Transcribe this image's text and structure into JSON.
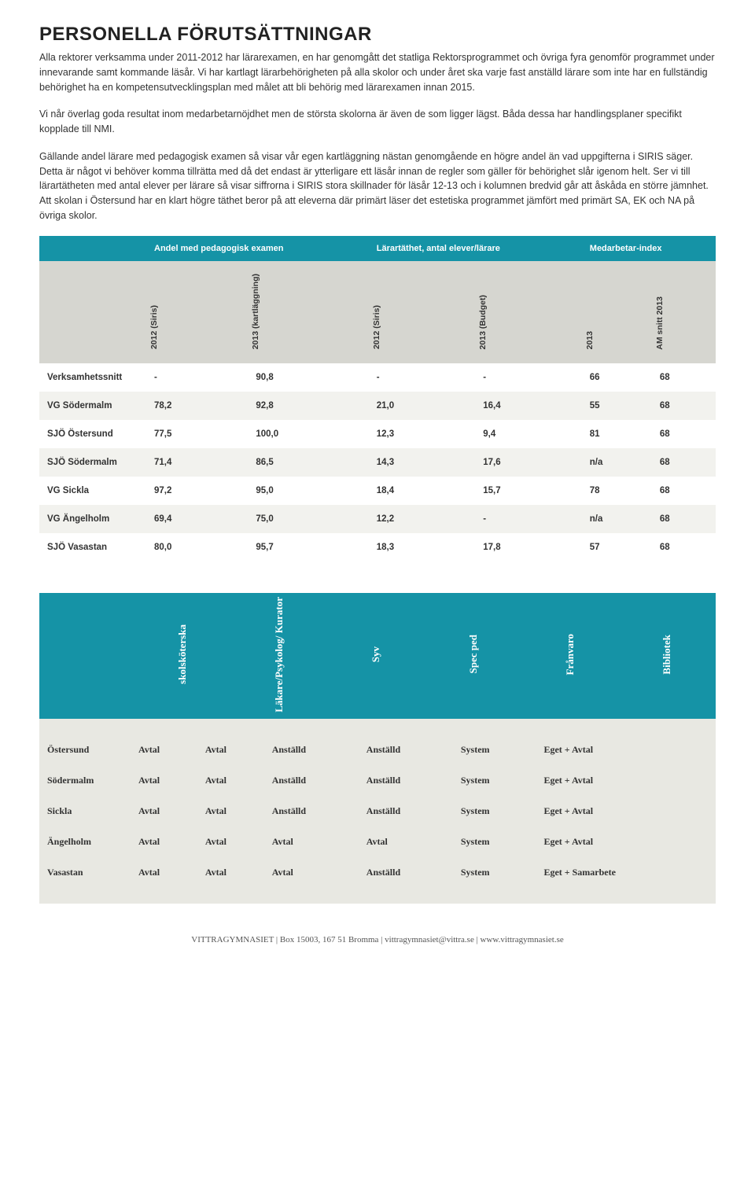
{
  "heading": "PERSONELLA FÖRUTSÄTTNINGAR",
  "paragraphs": [
    "Alla rektorer verksamma under 2011-2012 har lärarexamen, en har genomgått det statliga Rektorsprogrammet och övriga fyra genomför programmet under innevarande samt kommande läsår. Vi har kartlagt lärarbehörigheten på alla skolor och under året ska varje fast anställd lärare som inte har en fullständig behörighet ha en kompetensutvecklingsplan med målet att bli behörig med lärarexamen innan 2015.",
    "Vi når överlag goda resultat inom medarbetarnöjdhet men de största skolorna är även de som ligger lägst. Båda dessa har handlingsplaner specifikt kopplade till NMI.",
    "Gällande andel lärare med pedagogisk examen så visar vår egen kartläggning nästan genomgående en högre andel än vad uppgifterna i SIRIS säger. Detta är något vi behöver komma tillrätta med då det endast är ytterligare ett läsår innan de regler som gäller för behörighet slår igenom helt. Ser vi till lärartätheten med antal elever per lärare så visar siffrorna i SIRIS stora skillnader för läsår 12-13 och i kolumnen bredvid går att åskåda en större jämnhet. Att skolan i Östersund har en klart högre täthet beror på att eleverna där primärt läser det estetiska programmet jämfört med primärt SA, EK och NA på övriga skolor."
  ],
  "table1": {
    "group_headers": [
      "",
      "Andel med pedagogisk examen",
      "Lärartäthet, antal elever/lärare",
      "Medarbetar-index"
    ],
    "col_headers": [
      "",
      "2012 (Siris)",
      "2013 (kartläggning)",
      "2012 (Siris)",
      "2013 (Budget)",
      "2013",
      "AM snitt 2013"
    ],
    "rows": [
      {
        "label": "Verksamhetssnitt",
        "cells": [
          "-",
          "90,8",
          "-",
          "-",
          "66",
          "68"
        ]
      },
      {
        "label": "VG Södermalm",
        "cells": [
          "78,2",
          "92,8",
          "21,0",
          "16,4",
          "55",
          "68"
        ]
      },
      {
        "label": "SJÖ Östersund",
        "cells": [
          "77,5",
          "100,0",
          "12,3",
          "9,4",
          "81",
          "68"
        ]
      },
      {
        "label": "SJÖ Södermalm",
        "cells": [
          "71,4",
          "86,5",
          "14,3",
          "17,6",
          "n/a",
          "68"
        ]
      },
      {
        "label": "VG Sickla",
        "cells": [
          "97,2",
          "95,0",
          "18,4",
          "15,7",
          "78",
          "68"
        ]
      },
      {
        "label": "VG Ängelholm",
        "cells": [
          "69,4",
          "75,0",
          "12,2",
          "-",
          "n/a",
          "68"
        ]
      },
      {
        "label": "SJÖ Vasastan",
        "cells": [
          "80,0",
          "95,7",
          "18,3",
          "17,8",
          "57",
          "68"
        ]
      }
    ]
  },
  "table2": {
    "col_headers": [
      "",
      "skolsköterska",
      "Läkare/Psykolog/\nKurator",
      "Syv",
      "Spec ped",
      "Frånvaro",
      "Bibliotek"
    ],
    "rows": [
      {
        "label": "Östersund",
        "cells": [
          "Avtal",
          "Avtal",
          "Anställd",
          "Anställd",
          "System",
          "Eget + Avtal"
        ]
      },
      {
        "label": "Södermalm",
        "cells": [
          "Avtal",
          "Avtal",
          "Anställd",
          "Anställd",
          "System",
          "Eget + Avtal"
        ]
      },
      {
        "label": "Sickla",
        "cells": [
          "Avtal",
          "Avtal",
          "Anställd",
          "Anställd",
          "System",
          "Eget + Avtal"
        ]
      },
      {
        "label": "Ängelholm",
        "cells": [
          "Avtal",
          "Avtal",
          "Avtal",
          "Avtal",
          "System",
          "Eget + Avtal"
        ]
      },
      {
        "label": "Vasastan",
        "cells": [
          "Avtal",
          "Avtal",
          "Avtal",
          "Anställd",
          "System",
          "Eget + Samarbete"
        ]
      }
    ]
  },
  "footer": "VITTRAGYMNASIET | Box 15003, 167 51 Bromma | vittragymnasiet@vittra.se | www.vittragymnasiet.se"
}
